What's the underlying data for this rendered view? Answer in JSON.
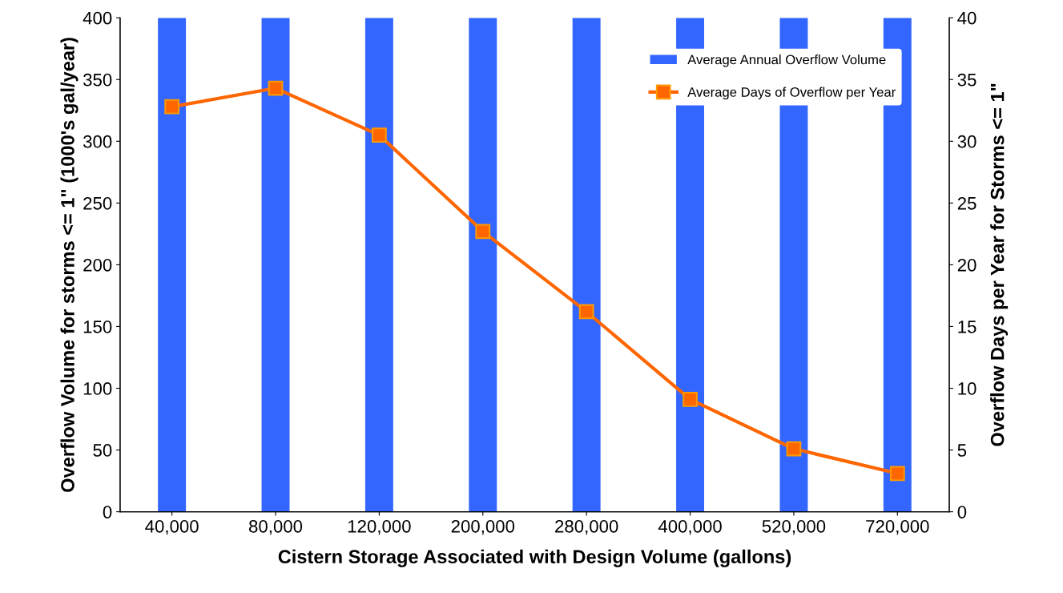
{
  "chart_data": {
    "type": "bar",
    "xlabel": "Cistern Storage Associated with Design Volume (gallons)",
    "ylabel": "Overflow Volume for storms <= 1\" (1000's gal/year)",
    "y2label": "Overflow Days per Year for Storms <= 1\"",
    "categories": [
      "40,000",
      "80,000",
      "120,000",
      "200,000",
      "280,000",
      "400,000",
      "520,000",
      "720,000"
    ],
    "series": [
      {
        "name": "Average Annual Overflow Volume",
        "color": "#3366ff",
        "values": [
          400,
          400,
          400,
          400,
          400,
          400,
          400,
          400
        ]
      },
      {
        "name": "Average Days of Overflow per Year",
        "type": "line",
        "axis": "y2",
        "color": "#ff6600",
        "marker": "square",
        "values": [
          32.8,
          34.3,
          30.5,
          22.7,
          16.2,
          9.1,
          5.1,
          3.1
        ]
      }
    ],
    "ylim": [
      0,
      400
    ],
    "yticks": [
      0,
      50,
      100,
      150,
      200,
      250,
      300,
      350,
      400
    ],
    "y2lim": [
      0,
      40
    ],
    "y2ticks": [
      0,
      5,
      10,
      15,
      20,
      25,
      30,
      35,
      40
    ],
    "grid": false,
    "legend": "top right"
  }
}
